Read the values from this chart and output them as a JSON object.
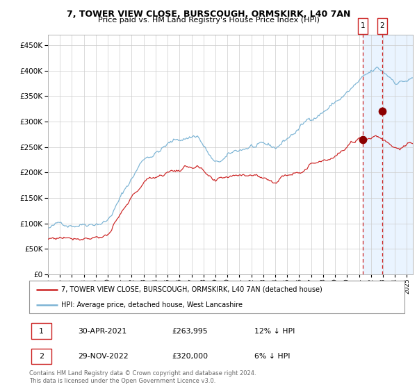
{
  "title": "7, TOWER VIEW CLOSE, BURSCOUGH, ORMSKIRK, L40 7AN",
  "subtitle": "Price paid vs. HM Land Registry's House Price Index (HPI)",
  "legend_line1": "7, TOWER VIEW CLOSE, BURSCOUGH, ORMSKIRK, L40 7AN (detached house)",
  "legend_line2": "HPI: Average price, detached house, West Lancashire",
  "footnote": "Contains HM Land Registry data © Crown copyright and database right 2024.\nThis data is licensed under the Open Government Licence v3.0.",
  "transaction1_label": "1",
  "transaction1_date": "30-APR-2021",
  "transaction1_price": "£263,995",
  "transaction1_hpi": "12% ↓ HPI",
  "transaction2_label": "2",
  "transaction2_date": "29-NOV-2022",
  "transaction2_price": "£320,000",
  "transaction2_hpi": "6% ↓ HPI",
  "ylim": [
    0,
    470000
  ],
  "yticks": [
    0,
    50000,
    100000,
    150000,
    200000,
    250000,
    300000,
    350000,
    400000,
    450000
  ],
  "hpi_color": "#7ab3d4",
  "price_color": "#cc2222",
  "vline_color": "#cc2222",
  "vshade_color": "#ddeeff",
  "point_color": "#8b0000",
  "point1_x": 2021.33,
  "point1_y": 263995,
  "point2_x": 2022.92,
  "point2_y": 320000,
  "vline1_x": 2021.33,
  "vline2_x": 2022.92,
  "xmin": 1995,
  "xmax": 2025.5
}
